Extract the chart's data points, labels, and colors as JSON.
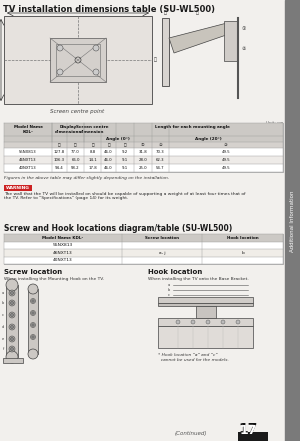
{
  "title": "TV installation dimensions table (SU-WL500)",
  "bg_color": "#f2f0ed",
  "text_color": "#1a1a1a",
  "unit_note": "Unit: cm",
  "screen_centre_label": "Screen centre point",
  "table1_rows": [
    [
      "55NX813",
      "127.8",
      "77.0",
      "8.8",
      "46.0",
      "9.2",
      "31.8",
      "70.3",
      "49.5"
    ],
    [
      "46NXT13",
      "106.3",
      "66.0",
      "14.1",
      "46.0",
      "9.1",
      "28.0",
      "62.3",
      "49.5"
    ],
    [
      "40NXT13",
      "94.4",
      "58.2",
      "17.8",
      "46.0",
      "9.1",
      "25.0",
      "54.7",
      "49.5"
    ]
  ],
  "figures_note": "Figures in the above table may differ slightly depending on the installation.",
  "warning_label": "WARNING",
  "warning_text": "The wall that the TV will be installed on should be capable of supporting a weight of at least four times that of\nthe TV. Refer to “Specifications” (page 14) for its weight.",
  "section2_title": "Screw and Hook locations diagram/table (SU-WL500)",
  "table2_headers": [
    "Model Name KDL-",
    "Screw location",
    "Hook location"
  ],
  "table2_rows": [
    [
      "55NX813",
      "",
      ""
    ],
    [
      "46NXT13",
      "a, j",
      "b"
    ],
    [
      "40NXT13",
      "",
      ""
    ]
  ],
  "screw_location_title": "Screw location",
  "hook_location_title": "Hook location",
  "screw_desc": "When installing the Mounting Hook on the TV.",
  "hook_desc": "When installing the TV onto the Base Bracket.",
  "footnote": "* Hook location “a” and “c”\n  cannot be used for the models.",
  "continued_text": "(Continued)",
  "page_num": "17",
  "sidebar_text": "Additional Information",
  "sidebar_color": "#7a7a7a",
  "header_bg": "#ccc9c5",
  "table_border": "#999999",
  "warning_bg": "#cc2222"
}
